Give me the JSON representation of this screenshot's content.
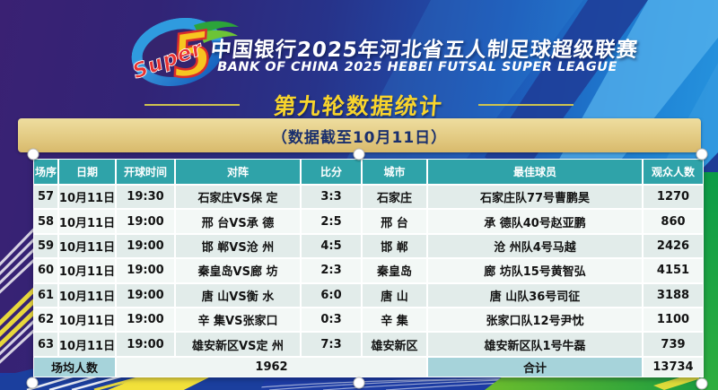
{
  "header": {
    "logo_word": "Super",
    "logo_digit": "5",
    "title_cn": "中国银行2025年河北省五人制足球超级联赛",
    "title_en": "BANK OF CHINA 2025 HEBEI FUTSAL SUPER LEAGUE",
    "round_title": "第九轮数据统计",
    "banner_note": "（数据截至10月11日）"
  },
  "table": {
    "columns": [
      "场序",
      "日期",
      "开球时间",
      "对阵",
      "比分",
      "城市",
      "最佳球员",
      "观众人数"
    ],
    "rows": [
      [
        "57",
        "10月11日",
        "19:30",
        "石家庄VS保  定",
        "3:3",
        "石家庄",
        "石家庄队77号曹鹏昊",
        "1270"
      ],
      [
        "58",
        "10月11日",
        "19:00",
        "邢  台VS承  德",
        "2:5",
        "邢  台",
        "承  德队40号赵亚鹏",
        "860"
      ],
      [
        "59",
        "10月11日",
        "19:00",
        "邯  郸VS沧  州",
        "4:5",
        "邯  郸",
        "沧  州队4号马越",
        "2426"
      ],
      [
        "60",
        "10月11日",
        "19:00",
        "秦皇岛VS廊  坊",
        "2:3",
        "秦皇岛",
        "廊  坊队15号黄智弘",
        "4151"
      ],
      [
        "61",
        "10月11日",
        "19:00",
        "唐  山VS衡  水",
        "6:0",
        "唐  山",
        "唐  山队36号司征",
        "3188"
      ],
      [
        "62",
        "10月11日",
        "19:00",
        "辛  集VS张家口",
        "0:3",
        "辛  集",
        "张家口队12号尹忱",
        "1100"
      ],
      [
        "63",
        "10月11日",
        "19:00",
        "雄安新区VS定  州",
        "7:3",
        "雄安新区",
        "雄安新区队1号牛磊",
        "739"
      ]
    ],
    "footer": {
      "avg_label": "场均人数",
      "avg_value": "1962",
      "total_label": "合计",
      "total_value": "13734"
    }
  },
  "chart_data": {
    "type": "table",
    "title": "第九轮数据统计",
    "subtitle": "（数据截至10月11日）",
    "league_cn": "中国银行2025年河北省五人制足球超级联赛",
    "league_en": "BANK OF CHINA 2025 HEBEI FUTSAL SUPER LEAGUE",
    "columns": [
      "场序",
      "日期",
      "开球时间",
      "对阵",
      "比分",
      "城市",
      "最佳球员",
      "观众人数"
    ],
    "rows": [
      [
        "57",
        "10月11日",
        "19:30",
        "石家庄VS保定",
        "3:3",
        "石家庄",
        "石家庄队77号曹鹏昊",
        1270
      ],
      [
        "58",
        "10月11日",
        "19:00",
        "邢台VS承德",
        "2:5",
        "邢台",
        "承德队40号赵亚鹏",
        860
      ],
      [
        "59",
        "10月11日",
        "19:00",
        "邯郸VS沧州",
        "4:5",
        "邯郸",
        "沧州队4号马越",
        2426
      ],
      [
        "60",
        "10月11日",
        "19:00",
        "秦皇岛VS廊坊",
        "2:3",
        "秦皇岛",
        "廊坊队15号黄智弘",
        4151
      ],
      [
        "61",
        "10月11日",
        "19:00",
        "唐山VS衡水",
        "6:0",
        "唐山",
        "唐山队36号司征",
        3188
      ],
      [
        "62",
        "10月11日",
        "19:00",
        "辛集VS张家口",
        "0:3",
        "辛集",
        "张家口队12号尹忱",
        1100
      ],
      [
        "63",
        "10月11日",
        "19:00",
        "雄安新区VS定州",
        "7:3",
        "雄安新区",
        "雄安新区队1号牛磊",
        739
      ]
    ],
    "average_attendance": 1962,
    "total_attendance": 13734
  },
  "colors": {
    "header_teal": "#2fa3a9",
    "row_odd": "#e2ecea",
    "row_even": "#f3f8f6",
    "footer_label_blue": "#a6d3da",
    "banner_gold": "#e3cb83",
    "round_title_yellow": "#f8d42c",
    "bg_purple": "#3a2173",
    "bg_blue": "#2b9de2",
    "stripe_green": "#2fa43c",
    "stripe_yellow": "#f2e13a",
    "bottom_blue": "#1d3ca4"
  }
}
